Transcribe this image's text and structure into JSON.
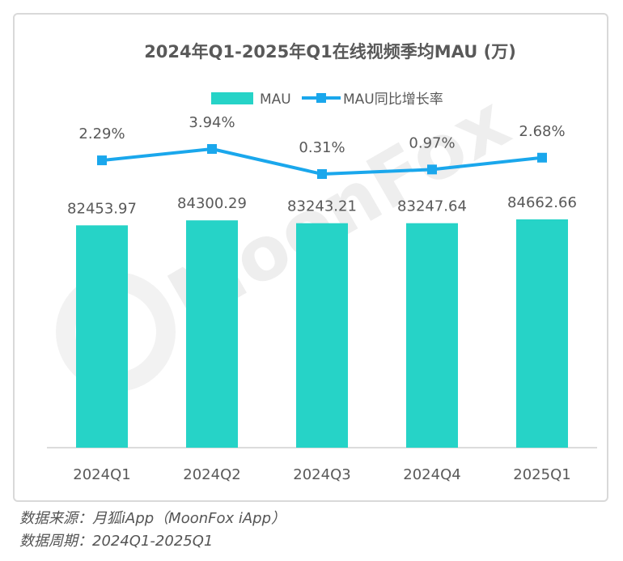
{
  "chart_data": {
    "type": "bar",
    "title": "2024年Q1-2025年Q1在线视频季均MAU (万)",
    "categories": [
      "2024Q1",
      "2024Q2",
      "2024Q3",
      "2024Q4",
      "2025Q1"
    ],
    "series": [
      {
        "name": "MAU",
        "kind": "bar",
        "color": "#26d3c7",
        "values": [
          82453.97,
          84300.29,
          83243.21,
          83247.64,
          84662.66
        ],
        "labels": [
          "82453.97",
          "84300.29",
          "83243.21",
          "83247.64",
          "84662.66"
        ]
      },
      {
        "name": "MAU同比增长率",
        "kind": "line",
        "color": "#1aa7ec",
        "values": [
          2.29,
          3.94,
          0.31,
          0.97,
          2.68
        ],
        "labels": [
          "2.29%",
          "3.94%",
          "0.31%",
          "0.97%",
          "2.68%"
        ]
      }
    ],
    "legend_position": "top-center",
    "grid": false,
    "watermark": "MoonFox"
  },
  "footer": {
    "source": "数据来源：月狐iApp（MoonFox iApp）",
    "period": "数据周期：2024Q1-2025Q1"
  }
}
